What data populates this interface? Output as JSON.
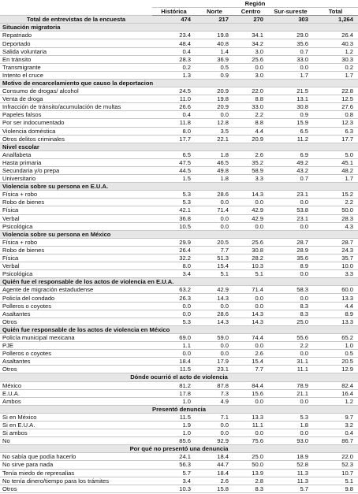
{
  "header": {
    "region": "Región",
    "columns": [
      "Histórica",
      "Norte",
      "Centro",
      "Sur-sureste",
      "Total"
    ]
  },
  "total_row": {
    "label": "Total de entrevistas de la encuesta",
    "values": [
      "474",
      "217",
      "270",
      "303",
      "1,264"
    ]
  },
  "sections": [
    {
      "title": "Situación migratoria",
      "rows": [
        {
          "label": "Repatriado",
          "values": [
            "23.4",
            "19.8",
            "34.1",
            "29.0",
            "26.4"
          ]
        },
        {
          "label": "Deportado",
          "values": [
            "48.4",
            "40.8",
            "34.2",
            "35.6",
            "40.3"
          ]
        },
        {
          "label": "Salida voluntaria",
          "values": [
            "0.4",
            "1.4",
            "3.0",
            "0.7",
            "1.2"
          ]
        },
        {
          "label": "En tránsito",
          "values": [
            "28.3",
            "36.9",
            "25.6",
            "33.0",
            "30.3"
          ]
        },
        {
          "label": "Transmigrante",
          "values": [
            "0.2",
            "0.5",
            "0.0",
            "0.0",
            "0.2"
          ]
        },
        {
          "label": "Intento el cruce",
          "values": [
            "1.3",
            "0.9",
            "3.0",
            "1.7",
            "1.7"
          ]
        }
      ]
    },
    {
      "title": "Motivo de encarcelamiento que causo la deportacion",
      "rows": [
        {
          "label": "Consumo de drogas/ alcohol",
          "values": [
            "24.5",
            "20.9",
            "22.0",
            "21.5",
            "22.8"
          ]
        },
        {
          "label": "Venta de droga",
          "values": [
            "11.0",
            "19.8",
            "8.8",
            "13.1",
            "12.5"
          ]
        },
        {
          "label": "Infracción de tránsito/acumulación de multas",
          "values": [
            "26.6",
            "20.9",
            "33.0",
            "30.8",
            "27.6"
          ]
        },
        {
          "label": "Papeles falsos",
          "values": [
            "0.4",
            "0.0",
            "2.2",
            "0.9",
            "0.8"
          ]
        },
        {
          "label": "Por ser indocumentado",
          "values": [
            "11.8",
            "12.8",
            "8.8",
            "15.9",
            "12.3"
          ]
        },
        {
          "label": "Violencia doméstica",
          "values": [
            "8.0",
            "3.5",
            "4.4",
            "6.5",
            "6.3"
          ]
        },
        {
          "label": "Otros delitos criminales",
          "values": [
            "17.7",
            "22.1",
            "20.9",
            "11.2",
            "17.7"
          ]
        }
      ]
    },
    {
      "title": "Nivel escolar",
      "rows": [
        {
          "label": "Analfabeta",
          "values": [
            "6.5",
            "1.8",
            "2.6",
            "6.9",
            "5.0"
          ]
        },
        {
          "label": "Hasta primaria",
          "values": [
            "47.5",
            "46.5",
            "35.2",
            "49.2",
            "45.1"
          ]
        },
        {
          "label": "Secundaria y/o prepa",
          "values": [
            "44.5",
            "49.8",
            "58.9",
            "43.2",
            "48.2"
          ]
        },
        {
          "label": "Universitario",
          "values": [
            "1.5",
            "1.8",
            "3.3",
            "0.7",
            "1.7"
          ]
        }
      ]
    },
    {
      "title": "Violencia sobre su persona en E.U.A.",
      "rows": [
        {
          "label": "Física + robo",
          "values": [
            "5.3",
            "28.6",
            "14.3",
            "23.1",
            "15.2"
          ]
        },
        {
          "label": "Robo de bienes",
          "values": [
            "5.3",
            "0.0",
            "0.0",
            "0.0",
            "2.2"
          ]
        },
        {
          "label": "Física",
          "values": [
            "42.1",
            "71.4",
            "42.9",
            "53.8",
            "50.0"
          ]
        },
        {
          "label": "Verbal",
          "values": [
            "36.8",
            "0.0",
            "42.9",
            "23.1",
            "28.3"
          ]
        },
        {
          "label": "Psicológica",
          "values": [
            "10.5",
            "0.0",
            "0.0",
            "0.0",
            "4.3"
          ]
        }
      ]
    },
    {
      "title": "Violencia sobre su persona en México",
      "rows": [
        {
          "label": "Física + robo",
          "values": [
            "29.9",
            "20.5",
            "25.6",
            "28.7",
            "28.7"
          ]
        },
        {
          "label": "Robo de bienes",
          "values": [
            "26.4",
            "7.7",
            "30.8",
            "28.9",
            "24.3"
          ]
        },
        {
          "label": "Física",
          "values": [
            "32.2",
            "51.3",
            "28.2",
            "35.6",
            "35.7"
          ]
        },
        {
          "label": "Verbal",
          "values": [
            "8.0",
            "15.4",
            "10.3",
            "8.9",
            "10.0"
          ]
        },
        {
          "label": "Psicológica",
          "values": [
            "3.4",
            "5.1",
            "5.1",
            "0.0",
            "3.3"
          ]
        }
      ]
    },
    {
      "title": "Quién fue el responsable de los actos de violencia en E.U.A.",
      "rows": [
        {
          "label": "Agente de migración estadudense",
          "values": [
            "63.2",
            "42.9",
            "71.4",
            "58.3",
            "60.0"
          ]
        },
        {
          "label": "Policía del condado",
          "values": [
            "26.3",
            "14.3",
            "0.0",
            "0.0",
            "13.3"
          ]
        },
        {
          "label": "Polleros o coyotes",
          "values": [
            "0.0",
            "0.0",
            "0.0",
            "8.3",
            "4.4"
          ]
        },
        {
          "label": "Asaltantes",
          "values": [
            "0.0",
            "28.6",
            "14.3",
            "8.3",
            "8.9"
          ]
        },
        {
          "label": "Otros",
          "values": [
            "5.3",
            "14.3",
            "14.3",
            "25.0",
            "13.3"
          ]
        }
      ]
    },
    {
      "title": "Quién fue responsable de los actos de violencia en México",
      "rows": [
        {
          "label": "Policía municipal mexicana",
          "values": [
            "69.0",
            "59.0",
            "74.4",
            "55.6",
            "65.2"
          ]
        },
        {
          "label": "PJE",
          "values": [
            "1.1",
            "0.0",
            "0.0",
            "2.2",
            "1.0"
          ]
        },
        {
          "label": "Polleros o coyotes",
          "values": [
            "0.0",
            "0.0",
            "2.6",
            "0.0",
            "0.5"
          ]
        },
        {
          "label": "Asaltantes",
          "values": [
            "18.4",
            "17.9",
            "15.4",
            "31.1",
            "20.5"
          ]
        },
        {
          "label": "Otros",
          "values": [
            "11.5",
            "23.1",
            "7.7",
            "11.1",
            "12.9"
          ]
        }
      ]
    },
    {
      "title": "Dónde ocurrió el acto de violencia",
      "rows": [
        {
          "label": "México",
          "values": [
            "81.2",
            "87.8",
            "84.4",
            "78.9",
            "82.4"
          ]
        },
        {
          "label": "E.U.A.",
          "values": [
            "17.8",
            "7.3",
            "15.6",
            "21.1",
            "16.4"
          ]
        },
        {
          "label": "Ambos",
          "values": [
            "1.0",
            "4.9",
            "0.0",
            "0.0",
            "1.2"
          ]
        }
      ]
    },
    {
      "title": "Presentó denuncia",
      "rows": [
        {
          "label": "Si en México",
          "values": [
            "11.5",
            "7.1",
            "13.3",
            "5.3",
            "9.7"
          ]
        },
        {
          "label": "Si en E.U.A.",
          "values": [
            "1.9",
            "0.0",
            "11.1",
            "1.8",
            "3.2"
          ]
        },
        {
          "label": "Si ambos",
          "values": [
            "1.0",
            "0.0",
            "0.0",
            "0.0",
            "0.4"
          ]
        },
        {
          "label": "No",
          "values": [
            "85.6",
            "92.9",
            "75.6",
            "93.0",
            "86.7"
          ]
        }
      ]
    },
    {
      "title": "Por qué no presentó una denuncia",
      "rows": [
        {
          "label": "No sabía que podía hacerlo",
          "values": [
            "24.1",
            "18.4",
            "25.0",
            "18.9",
            "22.0"
          ]
        },
        {
          "label": "No sirve para nada",
          "values": [
            "56.3",
            "44.7",
            "50.0",
            "52.8",
            "52.3"
          ]
        },
        {
          "label": "Tenía miedo de represalias",
          "values": [
            "5.7",
            "18.4",
            "13.9",
            "11.3",
            "10.7"
          ]
        },
        {
          "label": "No tenía dinero/tiempo para los trámites",
          "values": [
            "3.4",
            "2.6",
            "2.8",
            "11.3",
            "5.1"
          ]
        },
        {
          "label": "Otros",
          "values": [
            "10.3",
            "15.8",
            "8.3",
            "5.7",
            "9.8"
          ]
        }
      ]
    }
  ]
}
